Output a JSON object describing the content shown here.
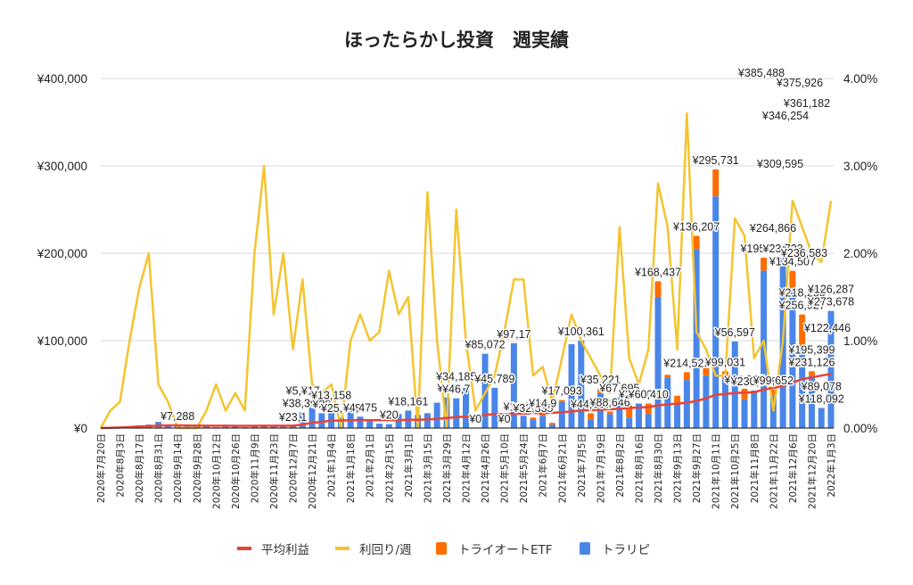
{
  "chart_data": {
    "type": "bar",
    "stacked": true,
    "title": "ほったらかし投資　週実績",
    "xlabel": "",
    "ylabel": "",
    "ylim": [
      0,
      400000
    ],
    "y_ticks": [
      "¥0",
      "¥100,000",
      "¥200,000",
      "¥300,000",
      "¥400,000"
    ],
    "y2lim": [
      0,
      4.0
    ],
    "y2_ticks": [
      "0.00%",
      "1.00%",
      "2.00%",
      "3.00%",
      "4.00%"
    ],
    "grid": true,
    "legend_position": "bottom",
    "colors": {
      "avg_profit": "#e94335",
      "yield": "#f4c430",
      "tri_auto_etf": "#ff6d00",
      "trarepi": "#4a86e8",
      "grid": "#d9d9d9",
      "axis": "#333333"
    },
    "legend": [
      {
        "key": "avg_profit",
        "label": "平均利益",
        "shape": "line"
      },
      {
        "key": "yield",
        "label": "利回り/週",
        "shape": "line"
      },
      {
        "key": "tri_auto_etf",
        "label": "トライオートETF",
        "shape": "box"
      },
      {
        "key": "trarepi",
        "label": "トラリピ",
        "shape": "box"
      }
    ],
    "x_tick_labels": [
      "2020年7月20日",
      "2020年8月3日",
      "2020年8月17日",
      "2020年8月31日",
      "2020年9月14日",
      "2020年9月28日",
      "2020年10月12日",
      "2020年10月26日",
      "2020年11月9日",
      "2020年11月23日",
      "2020年12月7日",
      "2020年12月21日",
      "2021年1月4日",
      "2021年1月18日",
      "2021年2月1日",
      "2021年2月15日",
      "2021年3月1日",
      "2021年3月15日",
      "2021年3月29日",
      "2021年4月12日",
      "2021年4月26日",
      "2021年5月10日",
      "2021年5月24日",
      "2021年6月7日",
      "2021年6月21日",
      "2021年7月5日",
      "2021年7月19日",
      "2021年8月2日",
      "2021年8月16日",
      "2021年8月30日",
      "2021年9月13日",
      "2021年9月27日",
      "2021年10月11日",
      "2021年10月25日",
      "2021年11月8日",
      "2021年11月22日",
      "2021年12月6日",
      "2021年12月20日",
      "2022年1月3日"
    ],
    "weeks": 77,
    "series": [
      {
        "name": "トラリピ",
        "key": "trarepi",
        "type": "bar",
        "values": [
          0,
          500,
          1500,
          2000,
          3000,
          4000,
          7000,
          4000,
          3000,
          2000,
          1500,
          1500,
          1000,
          2500,
          1500,
          1000,
          3500,
          2500,
          2000,
          2000,
          2000,
          18000,
          32000,
          17000,
          27000,
          12000,
          25000,
          13000,
          8000,
          5000,
          4500,
          16000,
          20000,
          15000,
          17000,
          29000,
          35000,
          34000,
          46000,
          0,
          85000,
          46000,
          0,
          97000,
          14000,
          10000,
          14000,
          4000,
          30000,
          96000,
          100000,
          10000,
          40000,
          16000,
          35000,
          12000,
          28000,
          16000,
          150000,
          58000,
          27000,
          55000,
          205000,
          60000,
          265000,
          57000,
          99000,
          33000,
          43000,
          180000,
          38000,
          195000,
          160000,
          95000,
          60000,
          23000,
          134000
        ]
      },
      {
        "name": "トライオートETF",
        "key": "tri_auto_etf",
        "type": "bar",
        "values": [
          0,
          0,
          0,
          0,
          0,
          0,
          0,
          0,
          0,
          0,
          0,
          0,
          0,
          0,
          0,
          0,
          0,
          0,
          0,
          0,
          0,
          0,
          0,
          0,
          0,
          0,
          0,
          0,
          0,
          0,
          0,
          0,
          0,
          0,
          0,
          0,
          0,
          0,
          0,
          0,
          0,
          0,
          0,
          0,
          0,
          2000,
          4000,
          2000,
          2000,
          0,
          0,
          7000,
          5000,
          3000,
          0,
          14000,
          0,
          12000,
          18000,
          3000,
          10000,
          9000,
          15000,
          10000,
          31000,
          8000,
          0,
          12000,
          0,
          15000,
          6000,
          0,
          20000,
          35000,
          5000,
          0,
          0
        ]
      },
      {
        "name": "利回り/週",
        "key": "yield",
        "type": "line",
        "axis": "right",
        "unit": "%",
        "values": [
          0.0,
          0.2,
          0.3,
          1.0,
          1.6,
          2.0,
          0.5,
          0.3,
          0.0,
          0.0,
          0.0,
          0.2,
          0.5,
          0.2,
          0.4,
          0.2,
          2.0,
          3.0,
          1.3,
          2.0,
          0.9,
          1.7,
          0.5,
          0.4,
          0.5,
          0.0,
          1.0,
          1.3,
          1.0,
          1.1,
          1.8,
          1.3,
          1.5,
          0.0,
          2.7,
          1.0,
          0.0,
          2.5,
          1.0,
          0.2,
          0.4,
          0.6,
          1.1,
          1.7,
          1.7,
          0.6,
          0.7,
          0.3,
          0.8,
          1.3,
          1.0,
          0.8,
          0.6,
          0.4,
          2.3,
          0.8,
          0.5,
          0.9,
          2.8,
          2.3,
          0.9,
          3.6,
          1.1,
          0.9,
          0.6,
          0.6,
          2.4,
          2.2,
          0.8,
          1.0,
          0.2,
          1.0,
          2.6,
          2.3,
          2.0,
          1.9,
          2.6
        ]
      },
      {
        "name": "平均利益",
        "key": "avg_profit",
        "type": "line",
        "axis": "left",
        "values": [
          0,
          300,
          700,
          1200,
          1800,
          2200,
          2800,
          3000,
          3000,
          2900,
          2800,
          2700,
          2700,
          2700,
          2600,
          2500,
          2600,
          2700,
          2700,
          2700,
          2700,
          4000,
          6000,
          7000,
          8500,
          8500,
          9000,
          9000,
          9000,
          9000,
          9000,
          9000,
          9500,
          9500,
          10000,
          10500,
          11500,
          12500,
          13000,
          13000,
          15000,
          16000,
          16000,
          16500,
          16500,
          17000,
          17000,
          17500,
          18000,
          19000,
          20000,
          20500,
          21000,
          21500,
          22000,
          23000,
          23500,
          24000,
          26000,
          27000,
          28000,
          29000,
          31000,
          34000,
          38000,
          39000,
          40000,
          40500,
          41000,
          44000,
          46000,
          48000,
          52000,
          56000,
          58000,
          60000,
          62000
        ]
      }
    ],
    "data_labels": [
      {
        "i": 8,
        "text": "¥7,288"
      },
      {
        "i": 20,
        "text": "¥23,1"
      },
      {
        "i": 21,
        "text": "¥38,399"
      },
      {
        "i": 21,
        "text": "¥5,113"
      },
      {
        "i": 22,
        "text": "¥17,"
      },
      {
        "i": 23,
        "text": "¥28"
      },
      {
        "i": 24,
        "text": "¥13,158"
      },
      {
        "i": 25,
        "text": "¥25,668"
      },
      {
        "i": 27,
        "text": "¥4,475"
      },
      {
        "i": 30,
        "text": "¥20"
      },
      {
        "i": 32,
        "text": "¥18,161"
      },
      {
        "i": 36,
        "text": "¥48"
      },
      {
        "i": 37,
        "text": "¥46,7"
      },
      {
        "i": 37,
        "text": "¥34,185"
      },
      {
        "i": 39,
        "text": "¥0"
      },
      {
        "i": 40,
        "text": "¥85,072"
      },
      {
        "i": 41,
        "text": "¥45,789"
      },
      {
        "i": 42,
        "text": "¥0"
      },
      {
        "i": 43,
        "text": "¥97,17"
      },
      {
        "i": 44,
        "text": "¥19,502"
      },
      {
        "i": 45,
        "text": "¥32,335"
      },
      {
        "i": 46,
        "text": "¥14,9"
      },
      {
        "i": 48,
        "text": "¥17,093"
      },
      {
        "i": 50,
        "text": "¥100,361"
      },
      {
        "i": 51,
        "text": "¥44,655"
      },
      {
        "i": 52,
        "text": "¥35,221"
      },
      {
        "i": 53,
        "text": "¥88,646"
      },
      {
        "i": 54,
        "text": "¥67,695"
      },
      {
        "i": 56,
        "text": "¥27,606"
      },
      {
        "i": 57,
        "text": "¥60,410"
      },
      {
        "i": 58,
        "text": "¥168,437"
      },
      {
        "i": 61,
        "text": "¥214,523"
      },
      {
        "i": 62,
        "text": "¥136,207"
      },
      {
        "i": 64,
        "text": "¥295,731"
      },
      {
        "i": 65,
        "text": "¥99,031"
      },
      {
        "i": 66,
        "text": "¥56,597"
      },
      {
        "i": 67,
        "text": "¥44,937"
      },
      {
        "i": 68,
        "text": "¥230,068"
      },
      {
        "i": 69,
        "text": "¥195,184"
      },
      {
        "i": 70,
        "text": "¥99,652"
      },
      {
        "i": 71,
        "text": "¥23,723"
      },
      {
        "i": 72,
        "text": "¥134,507"
      },
      {
        "i": 73,
        "text": "¥256,927"
      },
      {
        "i": 73,
        "text": "¥218,250"
      },
      {
        "i": 74,
        "text": "¥231,126"
      },
      {
        "i": 74,
        "text": "¥195,399"
      },
      {
        "i": 75,
        "text": "¥118,092"
      },
      {
        "i": 75,
        "text": "¥89,078"
      },
      {
        "i": 76,
        "text": "¥273,678"
      },
      {
        "i": 76,
        "text": "¥126,287"
      }
    ],
    "top_labels": [
      {
        "text": "¥385,488"
      },
      {
        "text": "¥375,926"
      },
      {
        "text": "¥361,182"
      },
      {
        "text": "¥346,254"
      },
      {
        "text": "¥309,595"
      },
      {
        "text": "¥264,866"
      },
      {
        "text": "¥236,583"
      },
      {
        "text": "¥122,446"
      }
    ]
  }
}
